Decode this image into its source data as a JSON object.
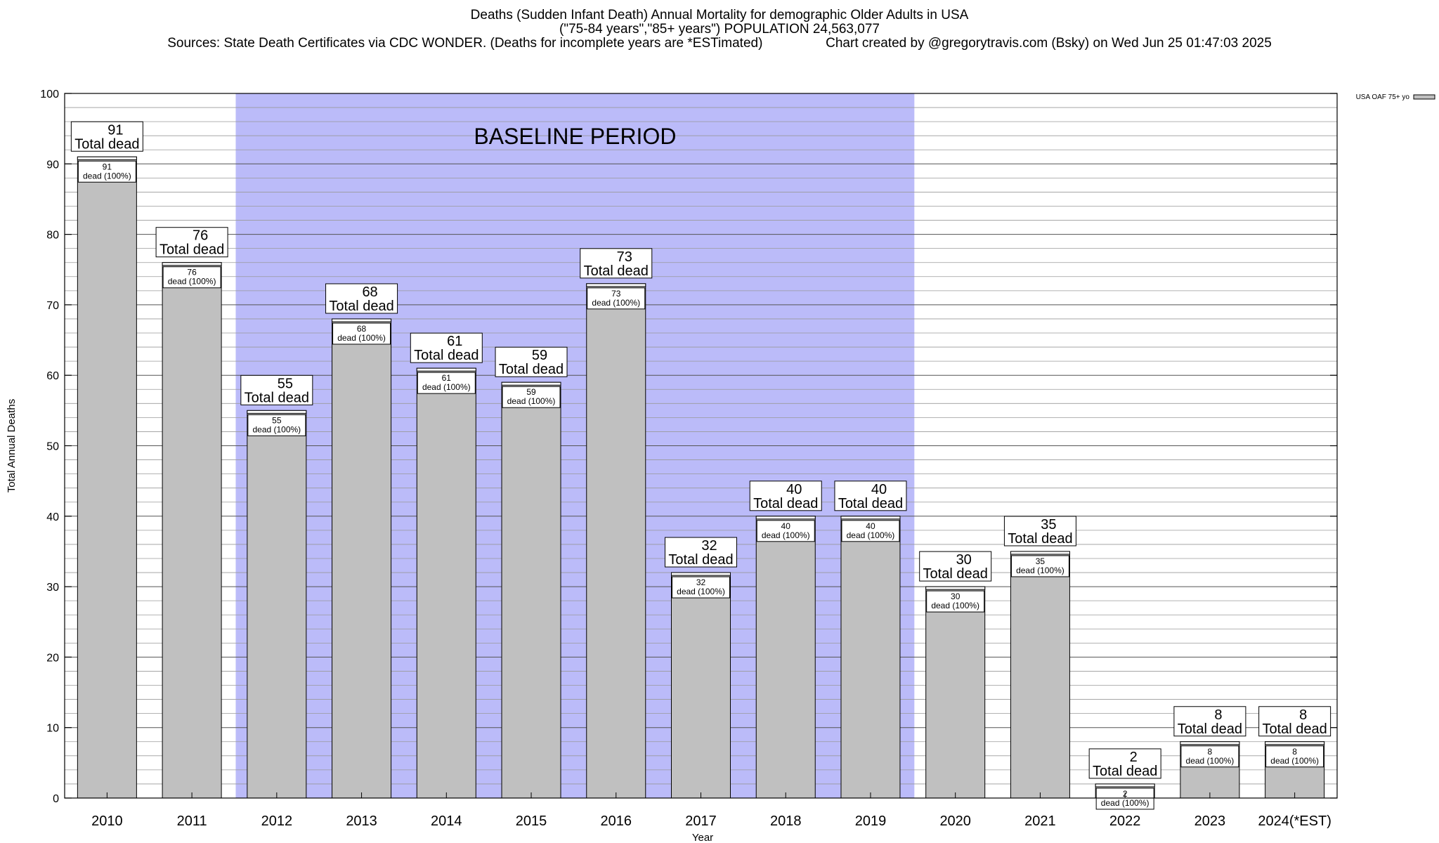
{
  "header": {
    "title_line1": "Deaths (Sudden Infant Death) Annual Mortality for demographic Older Adults in USA",
    "title_line2": "(\"75-84 years\",\"85+ years\") POPULATION 24,563,077",
    "title_line3": "Sources: State Death Certificates via CDC WONDER. (Deaths for incomplete years are *ESTimated)                 Chart created by @gregorytravis.com (Bsky) on Wed Jun 25 01:47:03 2025"
  },
  "chart_data": {
    "type": "bar",
    "xlabel": "Year",
    "ylabel": "Total Annual Deaths",
    "ylim": [
      0,
      100
    ],
    "yticks": [
      0,
      10,
      20,
      30,
      40,
      50,
      60,
      70,
      80,
      90,
      100
    ],
    "minor_grid_step": 2,
    "grid": true,
    "categories": [
      "2010",
      "2011",
      "2012",
      "2013",
      "2014",
      "2015",
      "2016",
      "2017",
      "2018",
      "2019",
      "2020",
      "2021",
      "2022",
      "2023",
      "2024(*EST)"
    ],
    "series": [
      {
        "name": "USA OAF 75+ yo",
        "values": [
          91,
          76,
          55,
          68,
          61,
          59,
          73,
          32,
          40,
          40,
          30,
          35,
          2,
          8,
          8
        ],
        "color": "#c0c0c0"
      }
    ],
    "top_label_suffix": "Total dead",
    "inner_label_suffix": "dead (100%)",
    "baseline": {
      "label": "BASELINE PERIOD",
      "from_category": "2012",
      "to_category": "2019",
      "color": "#bbbbf9"
    },
    "legend": {
      "position": "top-right",
      "label": "USA OAF 75+ yo"
    }
  }
}
